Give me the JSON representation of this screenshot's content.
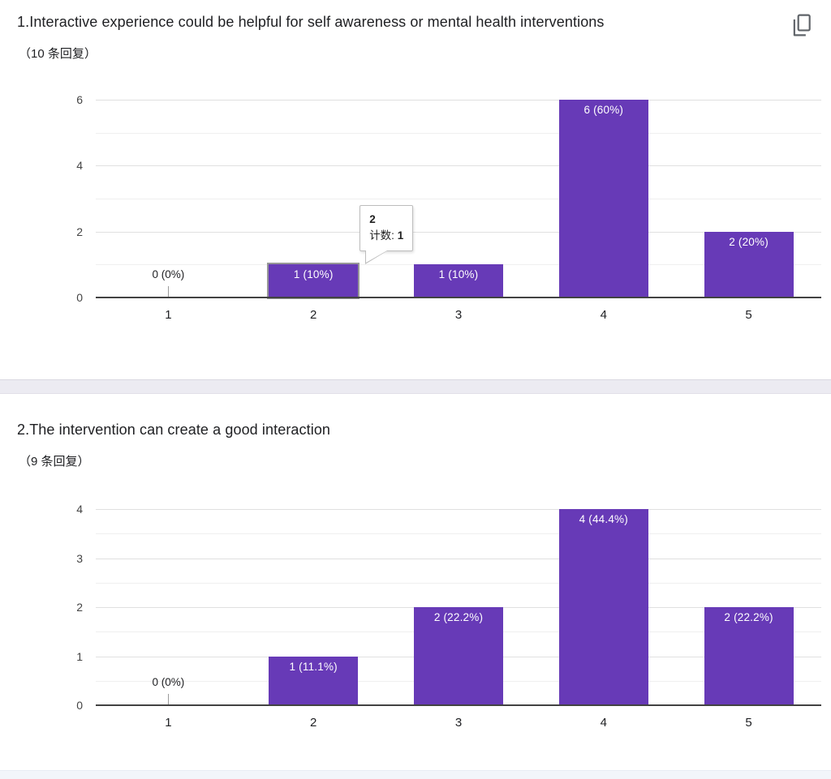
{
  "accent_color": "#673ab7",
  "chart_data": [
    {
      "type": "bar",
      "title": "1.Interactive experience could be helpful for self awareness or mental health interventions",
      "responses_label": "（10 条回复）",
      "categories": [
        "1",
        "2",
        "3",
        "4",
        "5"
      ],
      "values": [
        0,
        1,
        1,
        6,
        2
      ],
      "bar_labels": [
        "0 (0%)",
        "1 (10%)",
        "1 (10%)",
        "6 (60%)",
        "2 (20%)"
      ],
      "xlabel": "",
      "ylabel": "",
      "ylim": [
        0,
        6
      ],
      "yticks": [
        0,
        2,
        4,
        6
      ],
      "minor_yticks": [
        1,
        3,
        5
      ],
      "grid": true,
      "legend": "none",
      "bar_color": "#673ab7",
      "hovered_bar": {
        "index": 1,
        "tooltip_title": "2",
        "tooltip_label": "计数:",
        "tooltip_value": "1"
      }
    },
    {
      "type": "bar",
      "title": "2.The intervention can create a good interaction",
      "responses_label": "（9 条回复）",
      "categories": [
        "1",
        "2",
        "3",
        "4",
        "5"
      ],
      "values": [
        0,
        1,
        2,
        4,
        2
      ],
      "bar_labels": [
        "0 (0%)",
        "1 (11.1%)",
        "2 (22.2%)",
        "4 (44.4%)",
        "2 (22.2%)"
      ],
      "xlabel": "",
      "ylabel": "",
      "ylim": [
        0,
        4
      ],
      "yticks": [
        0,
        1,
        2,
        3,
        4
      ],
      "minor_yticks": [
        0.5,
        1.5,
        2.5,
        3.5
      ],
      "grid": true,
      "legend": "none",
      "bar_color": "#673ab7",
      "hovered_bar": null
    }
  ]
}
